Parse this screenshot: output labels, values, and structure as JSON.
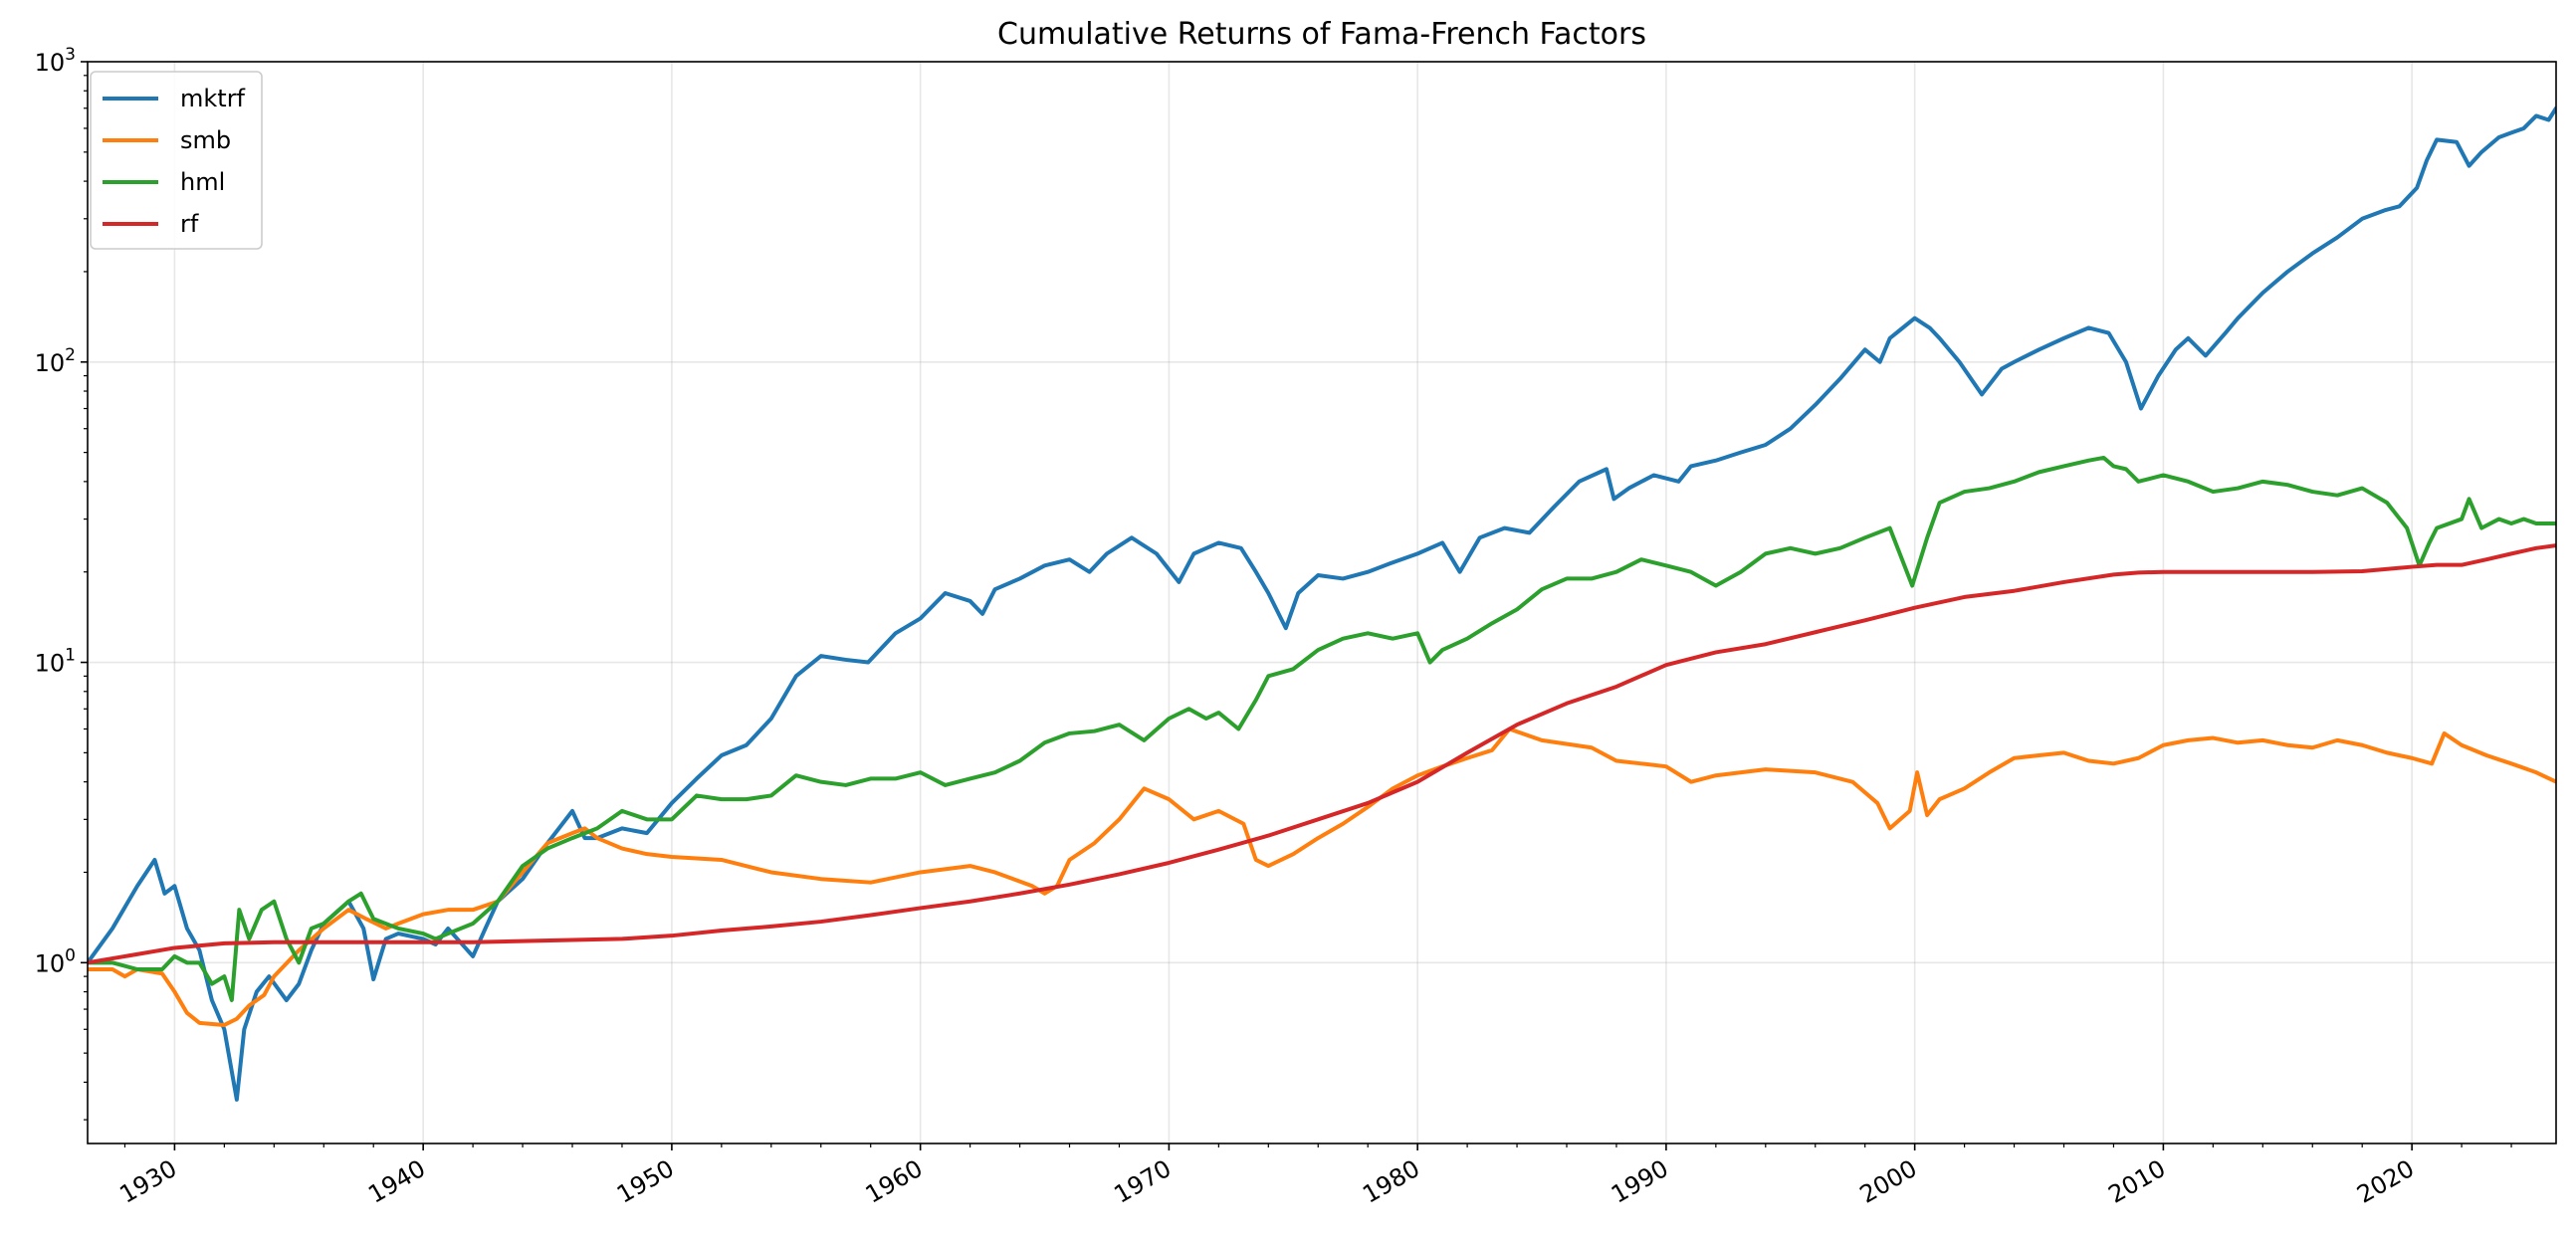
{
  "chart_data": {
    "type": "line",
    "title": "Cumulative Returns of Fama-French Factors",
    "xlabel": "",
    "ylabel": "",
    "x_scale": "time",
    "y_scale": "log",
    "xlim": [
      1926.5,
      2025.8
    ],
    "ylim": [
      0.25,
      1000
    ],
    "x_ticks": [
      {
        "value": 1930,
        "label": "1930"
      },
      {
        "value": 1940,
        "label": "1940"
      },
      {
        "value": 1950,
        "label": "1950"
      },
      {
        "value": 1960,
        "label": "1960"
      },
      {
        "value": 1970,
        "label": "1970"
      },
      {
        "value": 1980,
        "label": "1980"
      },
      {
        "value": 1990,
        "label": "1990"
      },
      {
        "value": 2000,
        "label": "2000"
      },
      {
        "value": 2010,
        "label": "2010"
      },
      {
        "value": 2020,
        "label": "2020"
      }
    ],
    "y_ticks": [
      {
        "value": 1,
        "base": "10",
        "exp": "0"
      },
      {
        "value": 10,
        "base": "10",
        "exp": "1"
      },
      {
        "value": 100,
        "base": "10",
        "exp": "2"
      },
      {
        "value": 1000,
        "base": "10",
        "exp": "3"
      }
    ],
    "grid": true,
    "legend_position": "upper left",
    "series": [
      {
        "name": "mktrf",
        "color": "#1f77b4",
        "x": [
          1926.5,
          1927.5,
          1928.5,
          1929.2,
          1929.6,
          1930.0,
          1930.5,
          1931.0,
          1931.5,
          1932.0,
          1932.5,
          1932.8,
          1933.3,
          1933.8,
          1934.5,
          1935.0,
          1935.5,
          1936.0,
          1937.0,
          1937.6,
          1938.0,
          1938.5,
          1939.0,
          1940.0,
          1940.5,
          1941.0,
          1942.0,
          1942.5,
          1943.0,
          1944.0,
          1945.0,
          1946.0,
          1946.5,
          1947.0,
          1948.0,
          1949.0,
          1950.0,
          1951.0,
          1952.0,
          1953.0,
          1954.0,
          1955.0,
          1956.0,
          1957.0,
          1957.9,
          1959.0,
          1960.0,
          1961.0,
          1962.0,
          1962.5,
          1963.0,
          1964.0,
          1965.0,
          1966.0,
          1966.8,
          1967.5,
          1968.5,
          1969.5,
          1970.4,
          1971.0,
          1972.0,
          1972.9,
          1973.5,
          1974.0,
          1974.7,
          1975.2,
          1976.0,
          1977.0,
          1978.0,
          1979.0,
          1980.0,
          1981.0,
          1981.7,
          1982.5,
          1983.5,
          1984.5,
          1985.5,
          1986.5,
          1987.6,
          1987.9,
          1988.5,
          1989.5,
          1990.5,
          1991.0,
          1992.0,
          1993.0,
          1994.0,
          1995.0,
          1996.0,
          1997.0,
          1998.0,
          1998.6,
          1999.0,
          2000.0,
          2000.6,
          2001.0,
          2001.8,
          2002.7,
          2003.5,
          2004.0,
          2005.0,
          2006.0,
          2007.0,
          2007.8,
          2008.5,
          2009.1,
          2009.8,
          2010.5,
          2011.0,
          2011.7,
          2012.5,
          2013.0,
          2014.0,
          2015.0,
          2016.0,
          2017.0,
          2018.0,
          2018.9,
          2019.5,
          2020.2,
          2020.6,
          2021.0,
          2021.8,
          2022.3,
          2022.8,
          2023.5,
          2024.0,
          2024.5,
          2025.0,
          2025.5,
          2025.8
        ],
        "y": [
          1.0,
          1.3,
          1.8,
          2.2,
          1.7,
          1.8,
          1.3,
          1.1,
          0.75,
          0.6,
          0.35,
          0.6,
          0.8,
          0.9,
          0.75,
          0.85,
          1.1,
          1.35,
          1.6,
          1.3,
          0.88,
          1.2,
          1.25,
          1.2,
          1.15,
          1.3,
          1.05,
          1.3,
          1.6,
          1.9,
          2.5,
          3.2,
          2.6,
          2.6,
          2.8,
          2.7,
          3.4,
          4.1,
          4.9,
          5.3,
          6.5,
          9.0,
          10.5,
          10.2,
          10.0,
          12.5,
          14.0,
          17.0,
          16.0,
          14.5,
          17.5,
          19.0,
          21.0,
          22.0,
          20.0,
          23.0,
          26.0,
          23.0,
          18.5,
          23.0,
          25.0,
          24.0,
          20.0,
          17.0,
          13.0,
          17.0,
          19.5,
          19.0,
          20.0,
          21.5,
          23.0,
          25.0,
          20.0,
          26.0,
          28.0,
          27.0,
          33.0,
          40.0,
          44.0,
          35.0,
          38.0,
          42.0,
          40.0,
          45.0,
          47.0,
          50.0,
          53.0,
          60.0,
          72.0,
          88.0,
          110.0,
          100.0,
          120.0,
          140.0,
          130.0,
          120.0,
          100.0,
          78.0,
          95.0,
          100.0,
          110.0,
          120.0,
          130.0,
          125.0,
          100.0,
          70.0,
          90.0,
          110.0,
          120.0,
          105.0,
          125.0,
          140.0,
          170.0,
          200.0,
          230.0,
          260.0,
          300.0,
          320.0,
          330.0,
          380.0,
          470.0,
          550.0,
          540.0,
          450.0,
          500.0,
          560.0,
          580.0,
          600.0,
          660.0,
          640.0,
          700.0
        ]
      },
      {
        "name": "smb",
        "color": "#ff7f0e",
        "x": [
          1926.5,
          1927.5,
          1928.0,
          1928.5,
          1929.5,
          1930.0,
          1930.5,
          1931.0,
          1932.0,
          1932.5,
          1933.0,
          1933.6,
          1934.0,
          1935.0,
          1936.0,
          1937.0,
          1937.7,
          1938.5,
          1939.0,
          1940.0,
          1941.0,
          1942.0,
          1943.0,
          1944.0,
          1945.0,
          1946.0,
          1946.5,
          1947.0,
          1948.0,
          1949.0,
          1950.0,
          1952.0,
          1954.0,
          1956.0,
          1958.0,
          1960.0,
          1962.0,
          1963.0,
          1964.5,
          1965.0,
          1965.5,
          1966.0,
          1967.0,
          1968.0,
          1969.0,
          1970.0,
          1971.0,
          1972.0,
          1973.0,
          1973.5,
          1974.0,
          1975.0,
          1976.0,
          1977.0,
          1978.0,
          1979.0,
          1980.0,
          1981.0,
          1982.0,
          1983.0,
          1983.7,
          1985.0,
          1987.0,
          1988.0,
          1989.0,
          1990.0,
          1991.0,
          1992.0,
          1994.0,
          1996.0,
          1997.5,
          1998.5,
          1999.0,
          1999.8,
          2000.1,
          2000.5,
          2001.0,
          2002.0,
          2003.0,
          2004.0,
          2005.0,
          2006.0,
          2007.0,
          2008.0,
          2009.0,
          2010.0,
          2011.0,
          2012.0,
          2013.0,
          2014.0,
          2015.0,
          2016.0,
          2017.0,
          2018.0,
          2019.0,
          2020.0,
          2020.8,
          2021.3,
          2022.0,
          2023.0,
          2024.0,
          2025.0,
          2025.8
        ],
        "y": [
          0.95,
          0.95,
          0.9,
          0.95,
          0.92,
          0.8,
          0.68,
          0.63,
          0.62,
          0.65,
          0.72,
          0.78,
          0.9,
          1.1,
          1.3,
          1.5,
          1.4,
          1.3,
          1.35,
          1.45,
          1.5,
          1.5,
          1.6,
          2.0,
          2.5,
          2.7,
          2.8,
          2.6,
          2.4,
          2.3,
          2.25,
          2.2,
          2.0,
          1.9,
          1.85,
          2.0,
          2.1,
          2.0,
          1.8,
          1.7,
          1.8,
          2.2,
          2.5,
          3.0,
          3.8,
          3.5,
          3.0,
          3.2,
          2.9,
          2.2,
          2.1,
          2.3,
          2.6,
          2.9,
          3.3,
          3.8,
          4.2,
          4.5,
          4.8,
          5.1,
          6.0,
          5.5,
          5.2,
          4.7,
          4.6,
          4.5,
          4.0,
          4.2,
          4.4,
          4.3,
          4.0,
          3.4,
          2.8,
          3.2,
          4.3,
          3.1,
          3.5,
          3.8,
          4.3,
          4.8,
          4.9,
          5.0,
          4.7,
          4.6,
          4.8,
          5.3,
          5.5,
          5.6,
          5.4,
          5.5,
          5.3,
          5.2,
          5.5,
          5.3,
          5.0,
          4.8,
          4.6,
          5.8,
          5.3,
          4.9,
          4.6,
          4.3,
          4.0
        ]
      },
      {
        "name": "hml",
        "color": "#2ca02c",
        "x": [
          1926.5,
          1927.5,
          1928.5,
          1929.5,
          1930.0,
          1930.5,
          1931.0,
          1931.5,
          1932.0,
          1932.3,
          1932.6,
          1933.0,
          1933.5,
          1934.0,
          1934.5,
          1935.0,
          1935.5,
          1936.0,
          1937.0,
          1937.5,
          1938.0,
          1939.0,
          1940.0,
          1940.5,
          1941.0,
          1942.0,
          1943.0,
          1944.0,
          1945.0,
          1946.0,
          1947.0,
          1948.0,
          1949.0,
          1950.0,
          1951.0,
          1952.0,
          1953.0,
          1954.0,
          1955.0,
          1956.0,
          1957.0,
          1958.0,
          1959.0,
          1960.0,
          1961.0,
          1962.0,
          1963.0,
          1964.0,
          1965.0,
          1966.0,
          1967.0,
          1968.0,
          1969.0,
          1970.0,
          1970.8,
          1971.5,
          1972.0,
          1972.8,
          1973.5,
          1974.0,
          1975.0,
          1976.0,
          1977.0,
          1978.0,
          1979.0,
          1980.0,
          1980.5,
          1981.0,
          1982.0,
          1983.0,
          1984.0,
          1985.0,
          1986.0,
          1987.0,
          1988.0,
          1989.0,
          1990.0,
          1991.0,
          1992.0,
          1993.0,
          1994.0,
          1995.0,
          1996.0,
          1997.0,
          1998.0,
          1999.0,
          1999.9,
          2000.5,
          2001.0,
          2002.0,
          2003.0,
          2004.0,
          2005.0,
          2006.0,
          2007.0,
          2007.6,
          2008.0,
          2008.5,
          2009.0,
          2010.0,
          2011.0,
          2012.0,
          2013.0,
          2014.0,
          2015.0,
          2016.0,
          2017.0,
          2018.0,
          2019.0,
          2019.8,
          2020.3,
          2020.7,
          2021.0,
          2022.0,
          2022.3,
          2022.8,
          2023.5,
          2024.0,
          2024.5,
          2025.0,
          2025.8
        ],
        "y": [
          1.0,
          1.0,
          0.95,
          0.95,
          1.05,
          1.0,
          1.0,
          0.85,
          0.9,
          0.75,
          1.5,
          1.2,
          1.5,
          1.6,
          1.2,
          1.0,
          1.3,
          1.35,
          1.6,
          1.7,
          1.4,
          1.3,
          1.25,
          1.2,
          1.25,
          1.35,
          1.6,
          2.1,
          2.4,
          2.6,
          2.8,
          3.2,
          3.0,
          3.0,
          3.6,
          3.5,
          3.5,
          3.6,
          4.2,
          4.0,
          3.9,
          4.1,
          4.1,
          4.3,
          3.9,
          4.1,
          4.3,
          4.7,
          5.4,
          5.8,
          5.9,
          6.2,
          5.5,
          6.5,
          7.0,
          6.5,
          6.8,
          6.0,
          7.5,
          9.0,
          9.5,
          11.0,
          12.0,
          12.5,
          12.0,
          12.5,
          10.0,
          11.0,
          12.0,
          13.5,
          15.0,
          17.5,
          19.0,
          19.0,
          20.0,
          22.0,
          21.0,
          20.0,
          18.0,
          20.0,
          23.0,
          24.0,
          23.0,
          24.0,
          26.0,
          28.0,
          18.0,
          26.0,
          34.0,
          37.0,
          38.0,
          40.0,
          43.0,
          45.0,
          47.0,
          48.0,
          45.0,
          44.0,
          40.0,
          42.0,
          40.0,
          37.0,
          38.0,
          40.0,
          39.0,
          37.0,
          36.0,
          38.0,
          34.0,
          28.0,
          21.0,
          25.0,
          28.0,
          30.0,
          35.0,
          28.0,
          30.0,
          29.0,
          30.0,
          29.0,
          29.0
        ]
      },
      {
        "name": "rf",
        "color": "#d62728",
        "x": [
          1926.5,
          1928.0,
          1930.0,
          1932.0,
          1934.0,
          1936.0,
          1938.0,
          1940.0,
          1942.0,
          1944.0,
          1946.0,
          1948.0,
          1950.0,
          1952.0,
          1954.0,
          1956.0,
          1958.0,
          1960.0,
          1962.0,
          1964.0,
          1966.0,
          1968.0,
          1970.0,
          1972.0,
          1974.0,
          1976.0,
          1978.0,
          1980.0,
          1982.0,
          1984.0,
          1986.0,
          1988.0,
          1990.0,
          1992.0,
          1994.0,
          1996.0,
          1998.0,
          2000.0,
          2002.0,
          2004.0,
          2006.0,
          2008.0,
          2009.0,
          2010.0,
          2012.0,
          2014.0,
          2016.0,
          2018.0,
          2020.0,
          2021.0,
          2022.0,
          2023.0,
          2024.0,
          2025.0,
          2025.8
        ],
        "y": [
          1.0,
          1.05,
          1.12,
          1.16,
          1.17,
          1.17,
          1.17,
          1.17,
          1.17,
          1.18,
          1.19,
          1.2,
          1.23,
          1.28,
          1.32,
          1.37,
          1.44,
          1.52,
          1.6,
          1.7,
          1.82,
          1.97,
          2.15,
          2.38,
          2.65,
          3.0,
          3.4,
          4.0,
          5.0,
          6.2,
          7.3,
          8.3,
          9.8,
          10.8,
          11.5,
          12.6,
          13.8,
          15.2,
          16.5,
          17.3,
          18.5,
          19.6,
          19.9,
          20.0,
          20.0,
          20.0,
          20.0,
          20.1,
          20.8,
          21.1,
          21.1,
          22.0,
          23.0,
          24.0,
          24.5
        ]
      }
    ]
  }
}
